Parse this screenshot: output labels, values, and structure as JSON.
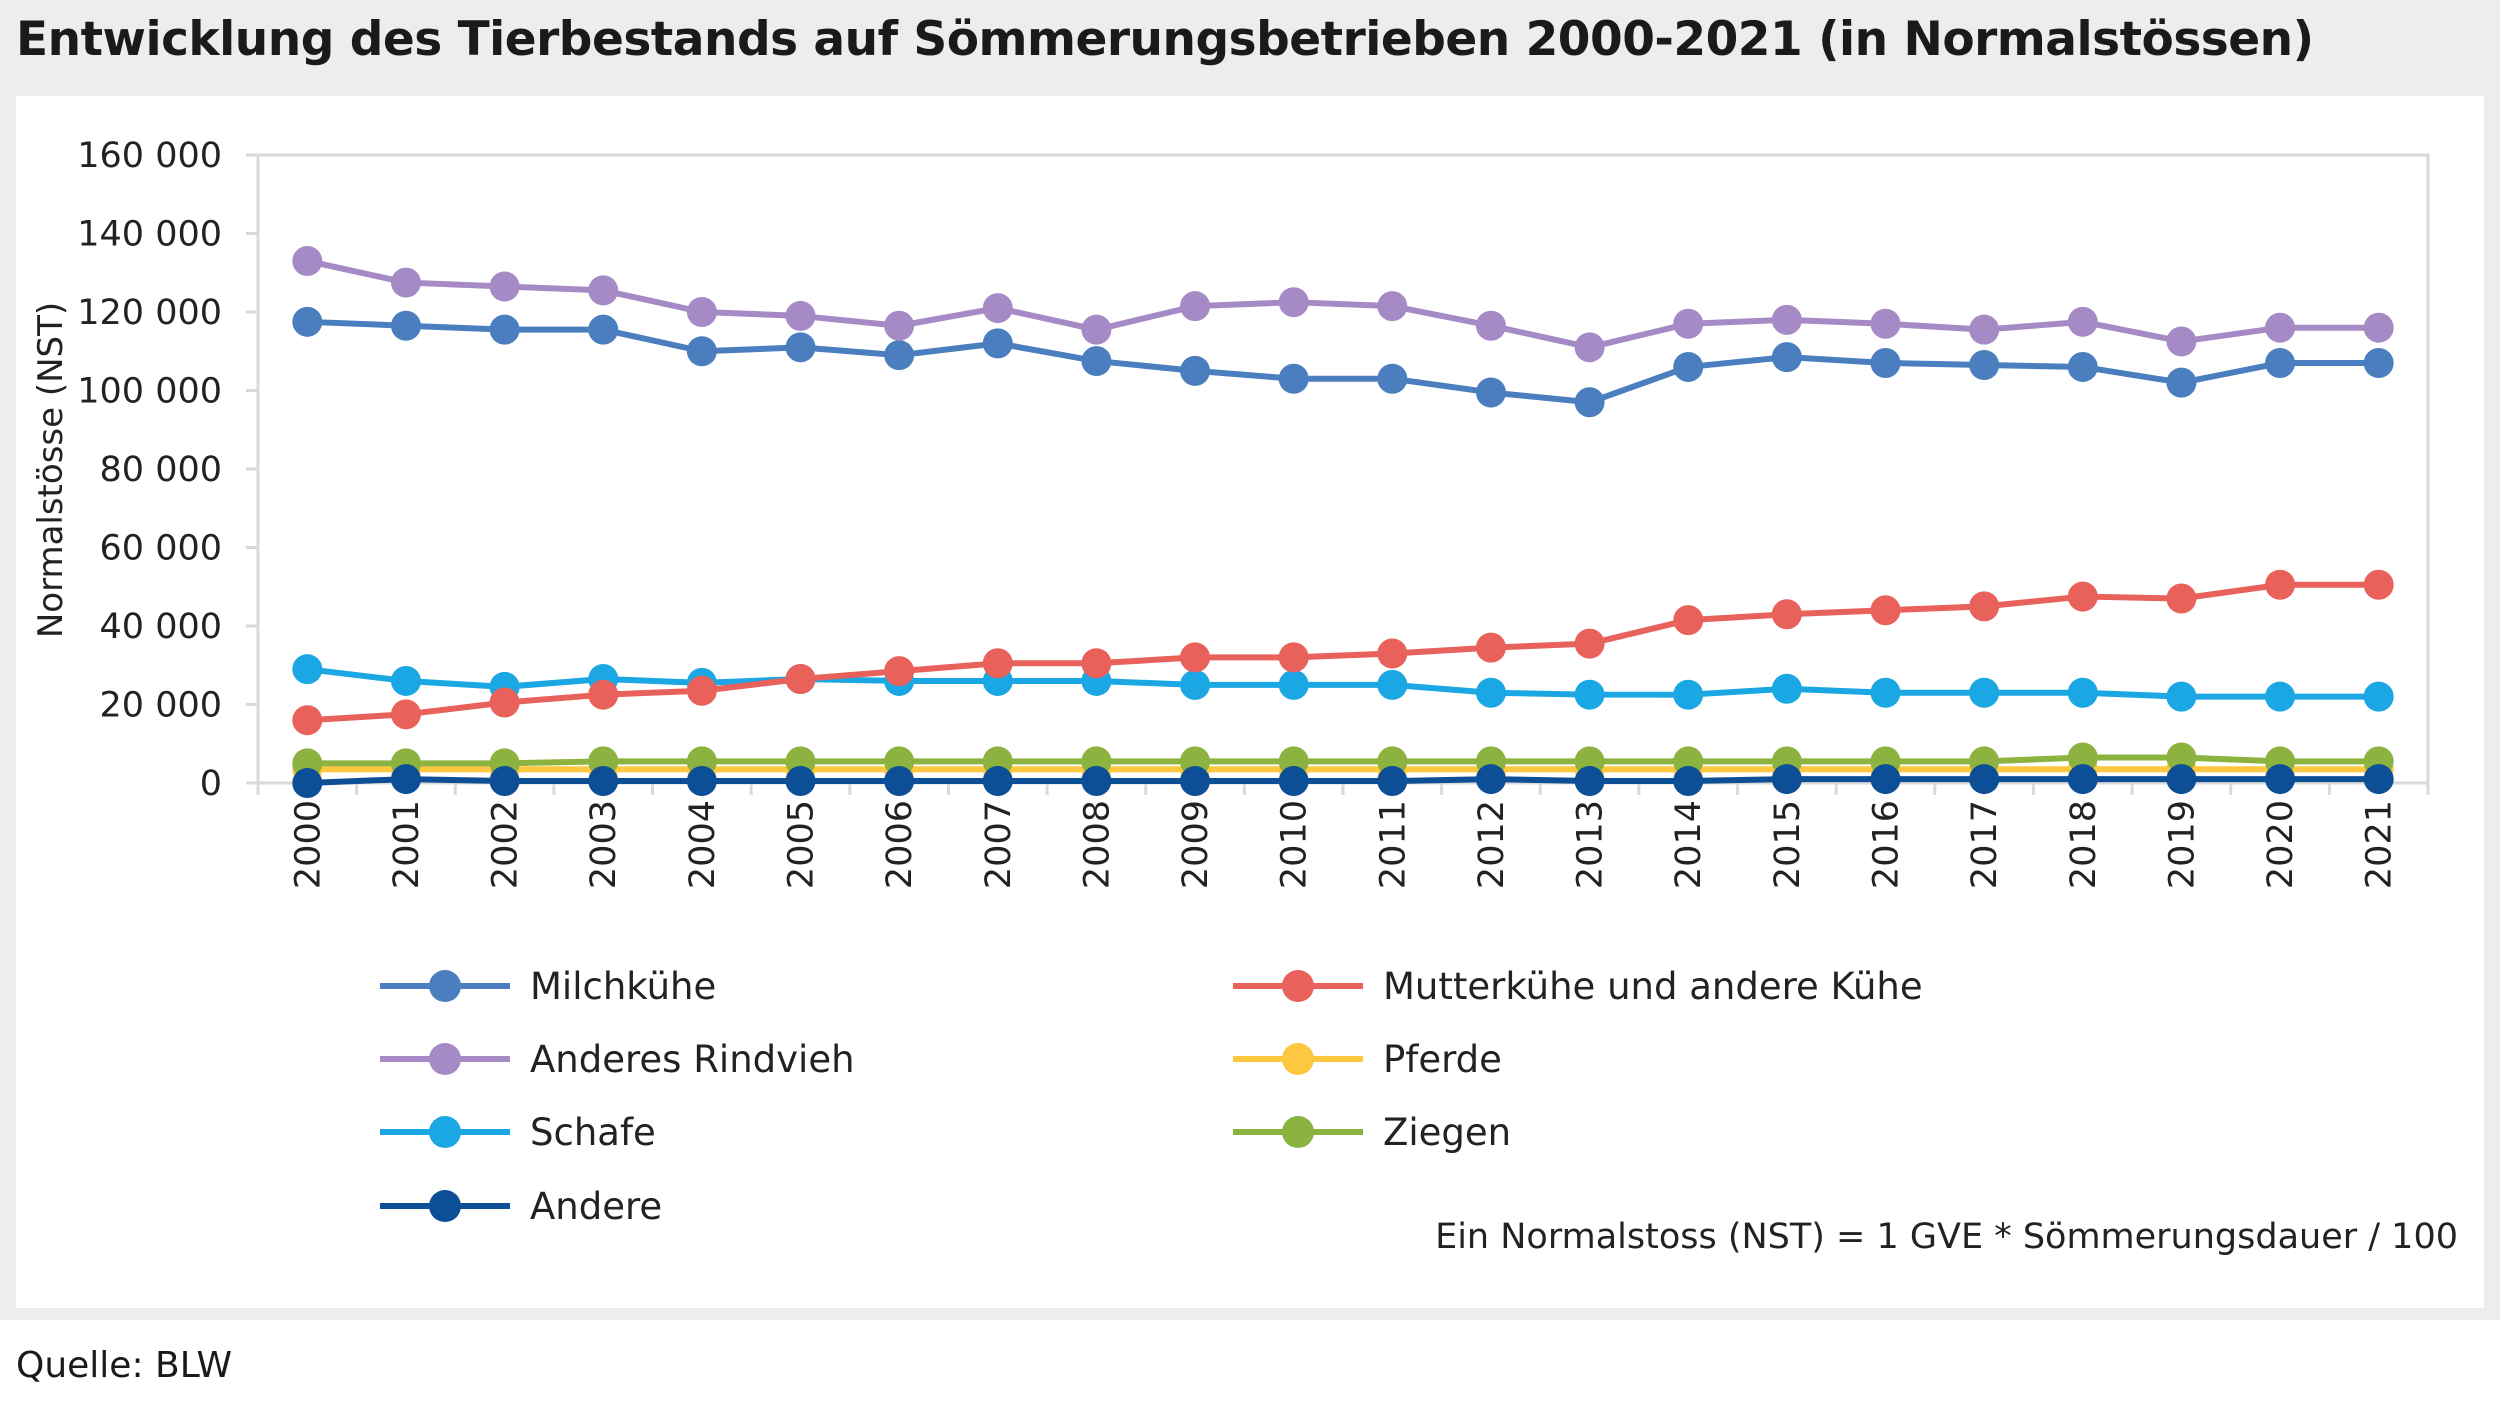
{
  "title": "Entwicklung des Tierbestands auf Sömmerungsbetrieben 2000-2021 (in Normalstössen)",
  "source": "Quelle: BLW",
  "note": "Ein Normalstoss (NST) = 1 GVE * Sömmerungsdauer / 100",
  "chart_data": {
    "type": "line",
    "title": "Entwicklung des Tierbestands auf Sömmerungsbetrieben 2000-2021 (in Normalstössen)",
    "xlabel": "",
    "ylabel": "Normalstösse (NST)",
    "ylim": [
      0,
      160000
    ],
    "yticks": [
      0,
      20000,
      40000,
      60000,
      80000,
      100000,
      120000,
      140000,
      160000
    ],
    "ytick_labels": [
      "0",
      "20 000",
      "40 000",
      "60 000",
      "80 000",
      "100 000",
      "120 000",
      "140 000",
      "160 000"
    ],
    "grid": false,
    "legend_position": "bottom",
    "categories": [
      "2000",
      "2001",
      "2002",
      "2003",
      "2004",
      "2005",
      "2006",
      "2007",
      "2008",
      "2009",
      "2010",
      "2011",
      "2012",
      "2013",
      "2014",
      "2015",
      "2016",
      "2017",
      "2018",
      "2019",
      "2020",
      "2021"
    ],
    "series": [
      {
        "name": "Milchkühe",
        "color": "#4a7ebf",
        "values": [
          117500,
          116500,
          115500,
          115500,
          110000,
          111000,
          109000,
          112000,
          107500,
          105000,
          103000,
          103000,
          99500,
          97000,
          106000,
          108500,
          107000,
          106500,
          106000,
          102000,
          107000,
          107000
        ]
      },
      {
        "name": "Mutterkühe und andere Kühe",
        "color": "#e8615a",
        "values": [
          16000,
          17500,
          20500,
          22500,
          23500,
          26500,
          28500,
          30500,
          30500,
          32000,
          32000,
          33000,
          34500,
          35500,
          41500,
          43000,
          44000,
          45000,
          47500,
          47000,
          50500,
          50500
        ]
      },
      {
        "name": "Anderes Rindvieh",
        "color": "#a58ac5",
        "values": [
          133000,
          127500,
          126500,
          125500,
          120000,
          119000,
          116500,
          121000,
          115500,
          121500,
          122500,
          121500,
          116500,
          111000,
          117000,
          118000,
          117000,
          115500,
          117500,
          112500,
          116000,
          116000
        ]
      },
      {
        "name": "Pferde",
        "color": "#fdc73f",
        "values": [
          3500,
          3500,
          3500,
          3500,
          3500,
          3500,
          3500,
          3500,
          3500,
          3500,
          3500,
          3500,
          3500,
          3500,
          3500,
          3500,
          3500,
          3500,
          3500,
          3500,
          3500,
          3500
        ]
      },
      {
        "name": "Schafe",
        "color": "#1aa7e3",
        "values": [
          29000,
          26000,
          24500,
          26500,
          25500,
          26500,
          26000,
          26000,
          26000,
          25000,
          25000,
          25000,
          23000,
          22500,
          22500,
          24000,
          23000,
          23000,
          23000,
          22000,
          22000,
          22000
        ]
      },
      {
        "name": "Ziegen",
        "color": "#8cb23f",
        "values": [
          5000,
          5000,
          5000,
          5500,
          5500,
          5500,
          5500,
          5500,
          5500,
          5500,
          5500,
          5500,
          5500,
          5500,
          5500,
          5500,
          5500,
          5500,
          6500,
          6500,
          5500,
          5500
        ]
      },
      {
        "name": "Andere",
        "color": "#0d4f96",
        "values": [
          0,
          1000,
          500,
          500,
          500,
          500,
          500,
          500,
          500,
          500,
          500,
          500,
          1000,
          500,
          500,
          1000,
          1000,
          1000,
          1000,
          1000,
          1000,
          1000
        ]
      }
    ]
  }
}
